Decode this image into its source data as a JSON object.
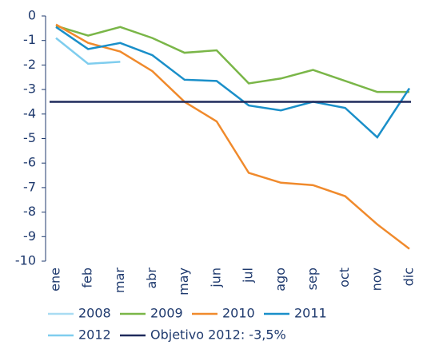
{
  "chart_data": {
    "type": "line",
    "categories": [
      "ene",
      "feb",
      "mar",
      "abr",
      "may",
      "jun",
      "jul",
      "ago",
      "sep",
      "oct",
      "nov",
      "dic"
    ],
    "series": [
      {
        "name": "2008",
        "color": "#a9dcf2",
        "values": [
          null,
          null,
          null,
          null,
          null,
          null,
          null,
          null,
          null,
          null,
          null,
          null
        ]
      },
      {
        "name": "2009",
        "color": "#7ab648",
        "values": [
          -0.4,
          -0.8,
          -0.45,
          -0.9,
          -1.5,
          -1.4,
          -2.75,
          -2.55,
          -2.2,
          -2.65,
          -3.1,
          -3.1
        ]
      },
      {
        "name": "2010",
        "color": "#f08a2c",
        "values": [
          -0.35,
          -1.1,
          -1.45,
          -2.25,
          -3.5,
          -4.3,
          -6.4,
          -6.8,
          -6.9,
          -7.35,
          -8.5,
          -9.5
        ]
      },
      {
        "name": "2011",
        "color": "#1a8fc9",
        "values": [
          -0.45,
          -1.35,
          -1.1,
          -1.6,
          -2.6,
          -2.65,
          -3.65,
          -3.85,
          -3.5,
          -3.75,
          -4.95,
          -2.95
        ]
      },
      {
        "name": "2012",
        "color": "#7fcdee",
        "values": [
          -0.9,
          -1.95,
          -1.87,
          null,
          null,
          null,
          null,
          null,
          null,
          null,
          null,
          null
        ]
      }
    ],
    "target": {
      "name": "Objetivo 2012: -3,5%",
      "value": -3.5,
      "color": "#1f2a5c"
    },
    "ylim": [
      -10,
      0
    ],
    "yticks": [
      0,
      -1,
      -2,
      -3,
      -4,
      -5,
      -6,
      -7,
      -8,
      -9,
      -10
    ],
    "grid": false
  }
}
